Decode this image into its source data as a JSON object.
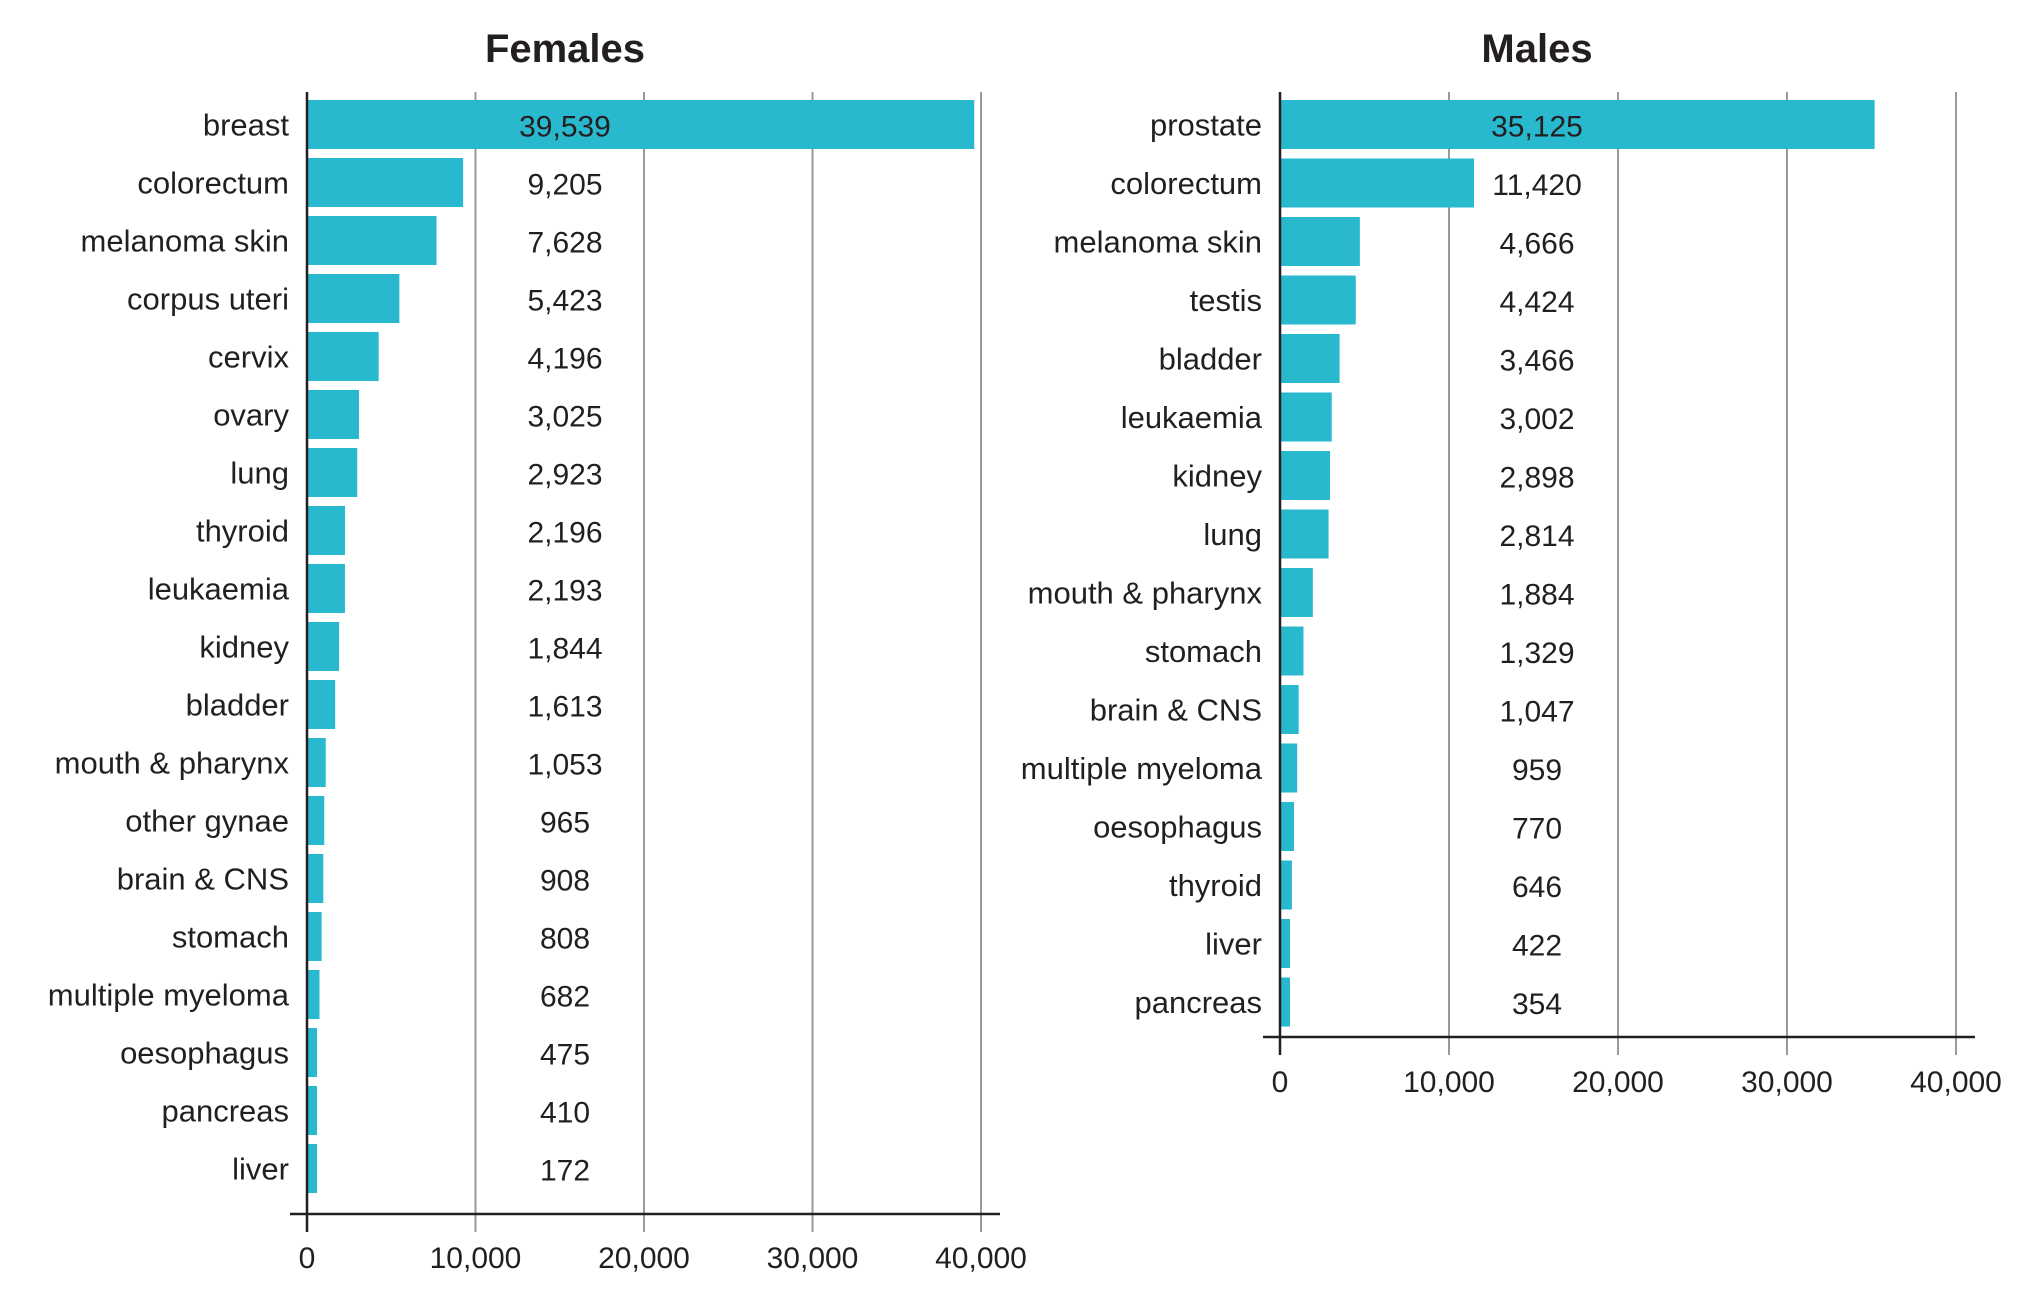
{
  "chart_data": [
    {
      "type": "bar",
      "orientation": "horizontal",
      "title": "Females",
      "categories": [
        "breast",
        "colorectum",
        "melanoma skin",
        "corpus uteri",
        "cervix",
        "ovary",
        "lung",
        "thyroid",
        "leukaemia",
        "kidney",
        "bladder",
        "mouth & pharynx",
        "other gynae",
        "brain & CNS",
        "stomach",
        "multiple myeloma",
        "oesophagus",
        "pancreas",
        "liver"
      ],
      "values": [
        39539,
        9205,
        7628,
        5423,
        4196,
        3025,
        2923,
        2196,
        2193,
        1844,
        1613,
        1053,
        965,
        908,
        808,
        682,
        475,
        410,
        172
      ],
      "value_labels": [
        "39,539",
        "9,205",
        "7,628",
        "5,423",
        "4,196",
        "3,025",
        "2,923",
        "2,196",
        "2,193",
        "1,844",
        "1,613",
        "1,053",
        "965",
        "908",
        "808",
        "682",
        "475",
        "410",
        "172"
      ],
      "xlim": [
        0,
        40000
      ],
      "xticks": [
        0,
        10000,
        20000,
        30000,
        40000
      ],
      "xtick_labels": [
        "0",
        "10,000",
        "20,000",
        "30,000",
        "40,000"
      ],
      "xlabel": "",
      "ylabel": "",
      "grid": "vertical",
      "bar_color": "#29b9cf"
    },
    {
      "type": "bar",
      "orientation": "horizontal",
      "title": "Males",
      "categories": [
        "prostate",
        "colorectum",
        "melanoma skin",
        "testis",
        "bladder",
        "leukaemia",
        "kidney",
        "lung",
        "mouth & pharynx",
        "stomach",
        "brain & CNS",
        "multiple myeloma",
        "oesophagus",
        "thyroid",
        "liver",
        "pancreas"
      ],
      "values": [
        35125,
        11420,
        4666,
        4424,
        3466,
        3002,
        2898,
        2814,
        1884,
        1329,
        1047,
        959,
        770,
        646,
        422,
        354
      ],
      "value_labels": [
        "35,125",
        "11,420",
        "4,666",
        "4,424",
        "3,466",
        "3,002",
        "2,898",
        "2,814",
        "1,884",
        "1,329",
        "1,047",
        "959",
        "770",
        "646",
        "422",
        "354"
      ],
      "xlim": [
        0,
        40000
      ],
      "xticks": [
        0,
        10000,
        20000,
        30000,
        40000
      ],
      "xtick_labels": [
        "0",
        "10,000",
        "20,000",
        "30,000",
        "40,000"
      ],
      "xlabel": "",
      "ylabel": "",
      "grid": "vertical",
      "bar_color": "#29b9cf"
    }
  ]
}
